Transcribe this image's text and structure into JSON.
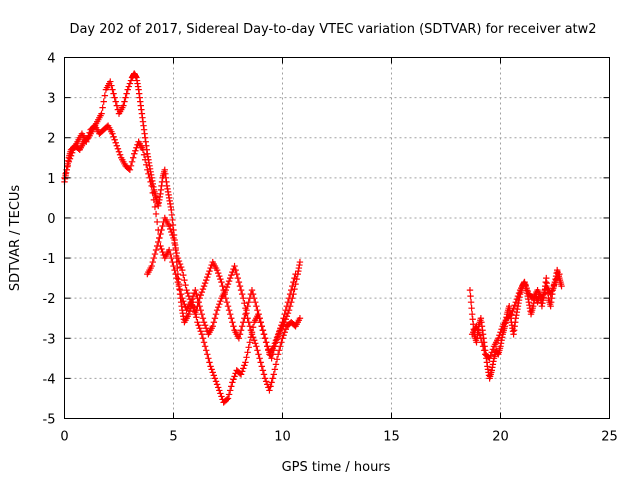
{
  "chart_data": {
    "type": "scatter",
    "title": "Day 202 of 2017, Sidereal Day-to-day VTEC variation (SDTVAR) for receiver atw2",
    "xlabel": "GPS time / hours",
    "ylabel": "SDTVAR / TECUs",
    "xlim": [
      0,
      25
    ],
    "ylim": [
      -5,
      4
    ],
    "x_ticks": [
      "0",
      "5",
      "10",
      "15",
      "20",
      "25"
    ],
    "y_ticks": [
      "-5",
      "-4",
      "-3",
      "-2",
      "-1",
      "0",
      "1",
      "2",
      "3",
      "4"
    ],
    "grid": true,
    "marker": "+",
    "series": [
      {
        "name": "SDTVAR",
        "color": "#ff0000",
        "segments": [
          {
            "x": [
              0.0,
              0.1,
              0.2,
              0.3,
              0.5,
              0.7,
              0.9,
              1.1,
              1.3,
              1.5,
              1.7,
              1.9,
              2.1,
              2.3,
              2.5,
              2.7,
              2.9,
              3.1,
              3.2,
              3.3,
              3.4,
              3.5,
              3.6,
              3.7,
              3.8,
              3.9,
              4.0,
              4.1,
              4.2,
              4.3,
              4.4,
              4.5,
              4.6,
              4.7,
              4.8,
              4.9,
              5.0,
              5.1,
              5.2,
              5.3,
              5.4,
              5.5,
              5.7,
              5.9,
              6.1,
              6.3,
              6.5,
              6.7,
              6.9,
              7.1,
              7.3,
              7.5,
              7.7,
              7.9,
              8.1,
              8.3,
              8.5,
              8.7,
              8.9,
              9.1,
              9.3,
              9.5,
              9.7,
              9.9,
              10.1,
              10.3,
              10.5,
              10.7,
              10.8
            ],
            "y": [
              0.9,
              1.2,
              1.5,
              1.7,
              1.8,
              1.7,
              1.9,
              2.0,
              2.2,
              2.4,
              2.6,
              3.2,
              3.4,
              3.0,
              2.6,
              2.8,
              3.2,
              3.5,
              3.6,
              3.5,
              3.2,
              2.8,
              2.4,
              2.0,
              1.6,
              1.3,
              1.0,
              0.7,
              0.5,
              0.3,
              0.6,
              1.0,
              1.2,
              0.8,
              0.5,
              0.2,
              -0.3,
              -0.8,
              -1.4,
              -1.9,
              -2.3,
              -2.6,
              -2.4,
              -2.1,
              -2.6,
              -2.9,
              -3.3,
              -3.7,
              -4.0,
              -4.3,
              -4.6,
              -4.5,
              -4.1,
              -3.8,
              -3.9,
              -3.6,
              -3.1,
              -2.6,
              -2.4,
              -2.8,
              -3.2,
              -3.5,
              -3.1,
              -2.8,
              -2.6,
              -2.3,
              -1.9,
              -1.4,
              -1.1
            ]
          },
          {
            "x": [
              0.0,
              0.2,
              0.4,
              0.6,
              0.8,
              1.0,
              1.2,
              1.4,
              1.6,
              1.8,
              2.0,
              2.2,
              2.4,
              2.6,
              2.8,
              3.0,
              3.2,
              3.4,
              3.6,
              3.8,
              4.0,
              4.2,
              4.4,
              4.6,
              4.8,
              5.0,
              5.2,
              5.4,
              5.6,
              5.8,
              6.0,
              6.2,
              6.4,
              6.6,
              6.8,
              7.0,
              7.2,
              7.4,
              7.6,
              7.8,
              8.0,
              8.2,
              8.4,
              8.6,
              8.8,
              9.0,
              9.2,
              9.4,
              9.6,
              9.8,
              10.0,
              10.2,
              10.4,
              10.6,
              10.8
            ],
            "y": [
              1.0,
              1.4,
              1.7,
              1.9,
              2.1,
              1.9,
              2.2,
              2.3,
              2.1,
              2.2,
              2.3,
              2.1,
              1.8,
              1.5,
              1.3,
              1.2,
              1.6,
              1.9,
              1.7,
              1.2,
              0.8,
              0.1,
              -0.7,
              -1.0,
              -0.8,
              -1.2,
              -1.6,
              -2.0,
              -2.3,
              -2.1,
              -1.8,
              -2.2,
              -2.6,
              -2.9,
              -2.7,
              -2.3,
              -2.0,
              -1.8,
              -1.5,
              -1.2,
              -1.6,
              -2.0,
              -2.5,
              -2.9,
              -3.2,
              -3.6,
              -4.0,
              -4.3,
              -3.9,
              -3.4,
              -3.0,
              -2.7,
              -2.6,
              -2.7,
              -2.5
            ]
          },
          {
            "x": [
              3.8,
              4.0,
              4.2,
              4.4,
              4.6,
              4.8,
              5.0,
              5.2,
              5.4,
              5.6,
              5.8,
              6.0,
              6.2,
              6.4,
              6.6,
              6.8,
              7.0,
              7.2,
              7.4,
              7.6,
              7.8,
              8.0,
              8.2,
              8.4,
              8.6,
              8.8,
              9.0,
              9.2,
              9.4,
              9.6,
              9.8,
              10.0,
              10.2,
              10.4,
              10.6
            ],
            "y": [
              -1.4,
              -1.2,
              -0.8,
              -0.4,
              0.0,
              -0.2,
              -0.5,
              -1.0,
              -1.3,
              -1.8,
              -2.1,
              -2.4,
              -2.0,
              -1.7,
              -1.4,
              -1.1,
              -1.3,
              -1.6,
              -2.0,
              -2.4,
              -2.8,
              -3.0,
              -2.6,
              -2.2,
              -1.8,
              -2.2,
              -2.6,
              -3.0,
              -3.4,
              -3.2,
              -2.9,
              -2.6,
              -2.2,
              -1.8,
              -1.4
            ]
          },
          {
            "x": [
              18.6,
              18.7,
              18.8,
              18.9,
              19.0,
              19.1,
              19.2,
              19.3,
              19.4,
              19.5,
              19.6,
              19.7,
              19.8,
              19.9,
              20.0,
              20.1,
              20.2,
              20.3,
              20.4,
              20.5,
              20.6,
              20.7,
              20.8,
              20.9,
              21.0,
              21.1,
              21.2,
              21.3,
              21.4,
              21.5,
              21.6,
              21.7,
              21.8,
              21.9,
              22.0,
              22.1,
              22.2,
              22.3,
              22.4,
              22.5,
              22.6,
              22.7,
              22.8
            ],
            "y": [
              -1.8,
              -2.4,
              -2.9,
              -3.1,
              -2.7,
              -2.5,
              -2.9,
              -3.3,
              -3.7,
              -4.0,
              -3.8,
              -3.5,
              -3.3,
              -3.4,
              -3.2,
              -2.9,
              -2.7,
              -2.4,
              -2.2,
              -2.6,
              -2.9,
              -2.5,
              -2.2,
              -1.9,
              -1.7,
              -1.6,
              -1.8,
              -2.1,
              -2.4,
              -2.2,
              -1.9,
              -2.1,
              -1.9,
              -2.2,
              -1.9,
              -1.5,
              -2.0,
              -2.2,
              -1.8,
              -1.6,
              -1.3,
              -1.5,
              -1.7
            ]
          },
          {
            "x": [
              18.7,
              18.9,
              19.1,
              19.3,
              19.5,
              19.7,
              19.9,
              20.1,
              20.3,
              20.5,
              20.7,
              20.9,
              21.1,
              21.3,
              21.5,
              21.7,
              21.9,
              22.1,
              22.3,
              22.5,
              22.7
            ],
            "y": [
              -2.9,
              -2.7,
              -3.0,
              -3.4,
              -3.5,
              -3.2,
              -3.0,
              -2.7,
              -2.5,
              -2.4,
              -2.1,
              -1.8,
              -1.6,
              -1.9,
              -2.0,
              -1.8,
              -2.0,
              -1.7,
              -1.9,
              -1.6,
              -1.4
            ]
          }
        ]
      }
    ]
  }
}
